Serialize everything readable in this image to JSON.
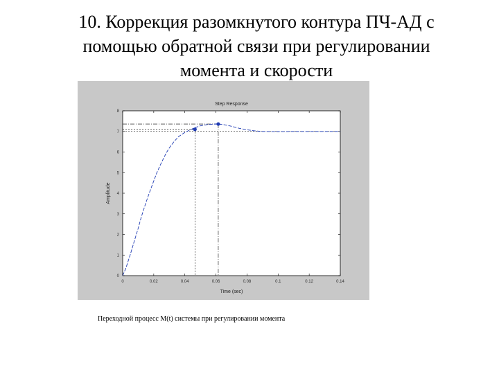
{
  "slide": {
    "title": "10. Коррекция разомкнутого контура ПЧ-АД с\nпомощью обратной связи при регулировании\nмомента и скорости"
  },
  "caption": "Переходной процесс M(t) системы при регулировании момента",
  "chart_data": {
    "type": "line",
    "title": "Step Response",
    "xlabel": "Time (sec)",
    "ylabel": "Amplitude",
    "xlim": [
      0,
      0.14
    ],
    "ylim": [
      0,
      8
    ],
    "xticks": [
      0,
      0.02,
      0.04,
      0.06,
      0.08,
      0.1,
      0.12,
      0.14
    ],
    "xtick_labels": [
      "0",
      "0.02",
      "0.04",
      "0.06",
      "0.08",
      "0.1",
      "0.12",
      "0.14"
    ],
    "yticks": [
      0,
      1,
      2,
      3,
      4,
      5,
      6,
      7,
      8
    ],
    "ytick_labels": [
      "0",
      "1",
      "2",
      "3",
      "4",
      "5",
      "6",
      "7",
      "8"
    ],
    "grid": false,
    "series": [
      {
        "color": "#1f3bb3",
        "x": [
          0,
          0.002,
          0.005,
          0.008,
          0.01,
          0.012,
          0.015,
          0.018,
          0.02,
          0.022,
          0.025,
          0.028,
          0.03,
          0.033,
          0.036,
          0.04,
          0.043,
          0.046,
          0.05,
          0.055,
          0.06,
          0.065,
          0.07,
          0.075,
          0.08,
          0.085,
          0.09,
          0.1,
          0.11,
          0.12,
          0.13,
          0.14
        ],
        "y": [
          0,
          0.35,
          1.05,
          1.8,
          2.3,
          2.85,
          3.55,
          4.2,
          4.6,
          5.0,
          5.5,
          5.95,
          6.2,
          6.5,
          6.75,
          6.95,
          7.06,
          7.17,
          7.27,
          7.34,
          7.36,
          7.33,
          7.25,
          7.15,
          7.08,
          7.03,
          7.0,
          6.99,
          7.0,
          7.0,
          7.0,
          7.0
        ]
      }
    ],
    "final_value": 7.0,
    "markers": [
      {
        "name": "rise-time",
        "x": 0.0465,
        "y": 7.1
      },
      {
        "name": "peak",
        "x": 0.0615,
        "y": 7.36
      }
    ],
    "colors": {
      "panel_bg": "#c8c8c8",
      "plot_bg": "#ffffff",
      "line": "#1f3bb3",
      "axis": "#000000"
    }
  }
}
